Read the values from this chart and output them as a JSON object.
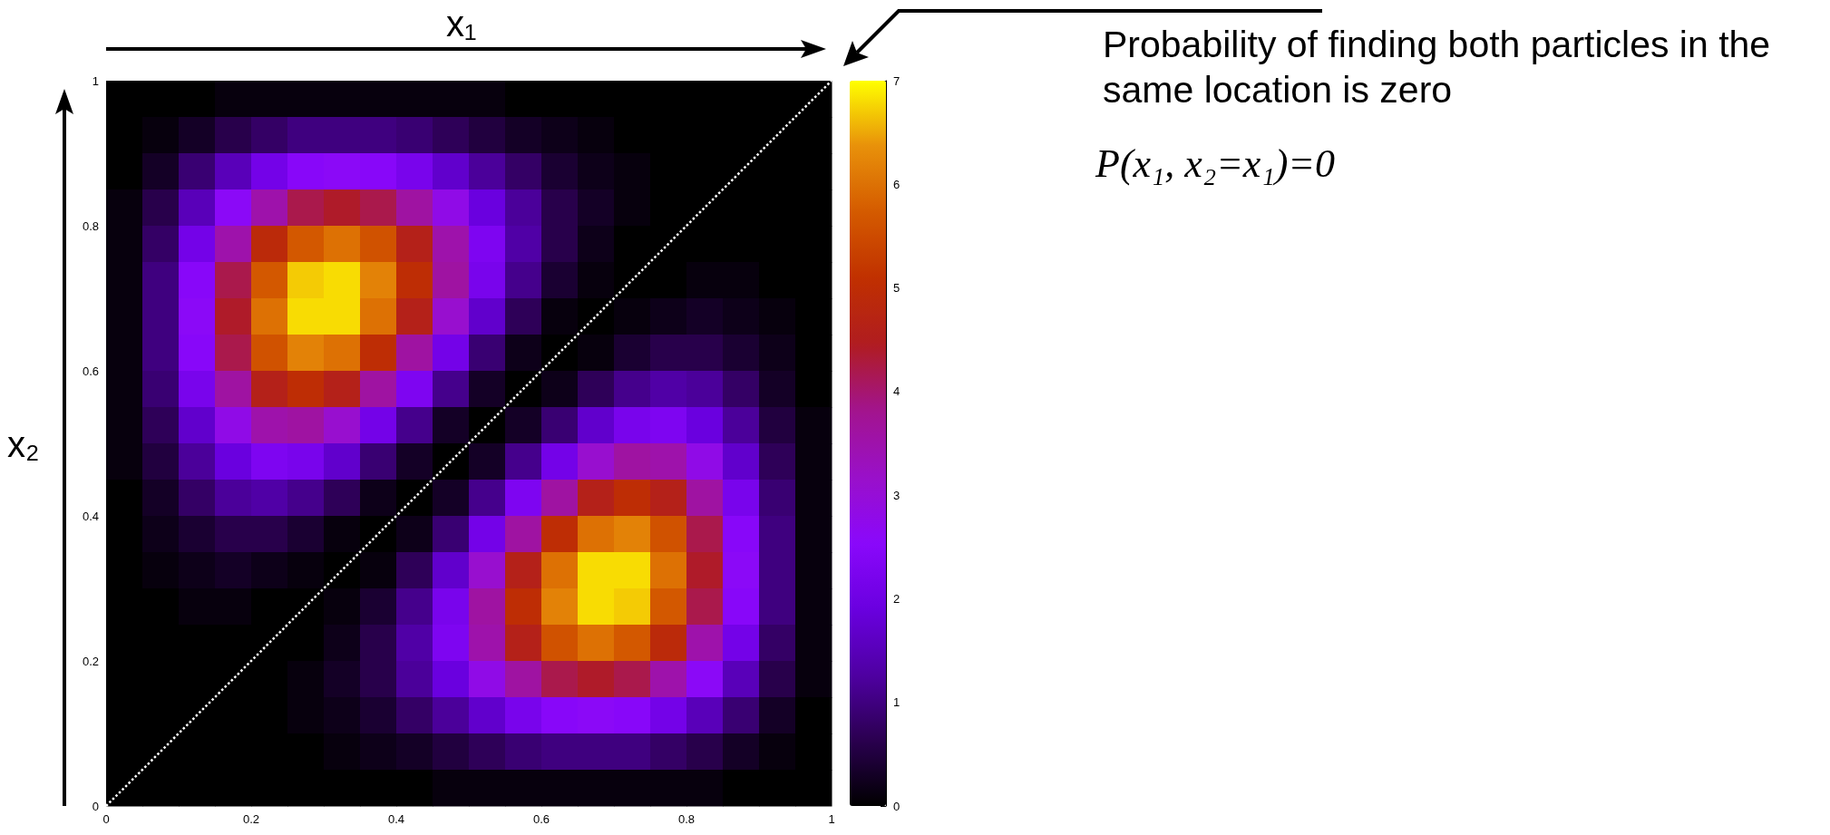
{
  "chart_data": {
    "type": "heatmap",
    "xlabel": "x₁",
    "ylabel": "x₂",
    "annotations": [
      "Probability of finding both particles in the same location is zero",
      "P(x₁, x₂=x₁)=0"
    ],
    "xlim": [
      0,
      1
    ],
    "xticks": [
      0,
      0.2,
      0.4,
      0.6,
      0.8,
      1
    ],
    "ylim": [
      0,
      1
    ],
    "yticks": [
      0,
      0.2,
      0.4,
      0.6,
      0.8,
      1
    ],
    "clim": [
      0,
      7
    ],
    "cticks": [
      0,
      1,
      2,
      3,
      4,
      5,
      6,
      7
    ],
    "cells": [
      [
        0,
        0,
        0,
        0.1,
        0.1,
        0.1,
        0.1,
        0.1,
        0.1,
        0.1,
        0.1,
        0,
        0,
        0,
        0,
        0,
        0,
        0,
        0,
        0
      ],
      [
        0,
        0.1,
        0.3,
        0.6,
        0.8,
        1.0,
        1.0,
        1.0,
        0.9,
        0.7,
        0.5,
        0.3,
        0.2,
        0.1,
        0,
        0,
        0,
        0,
        0,
        0
      ],
      [
        0,
        0.3,
        0.9,
        1.5,
        2.1,
        2.5,
        2.6,
        2.5,
        2.2,
        1.7,
        1.2,
        0.8,
        0.4,
        0.2,
        0.1,
        0,
        0,
        0,
        0,
        0
      ],
      [
        0.1,
        0.6,
        1.5,
        2.6,
        3.5,
        4.2,
        4.4,
        4.2,
        3.6,
        2.8,
        1.9,
        1.2,
        0.6,
        0.3,
        0.1,
        0,
        0,
        0,
        0,
        0
      ],
      [
        0.1,
        0.8,
        2.1,
        3.5,
        4.9,
        5.7,
        6.0,
        5.6,
        4.6,
        3.5,
        2.3,
        1.3,
        0.6,
        0.2,
        0,
        0,
        0,
        0,
        0,
        0
      ],
      [
        0.1,
        1.0,
        2.5,
        4.2,
        5.7,
        6.7,
        6.8,
        6.2,
        5.0,
        3.6,
        2.2,
        1.1,
        0.4,
        0.1,
        0,
        0,
        0.1,
        0.1,
        0,
        0
      ],
      [
        0.1,
        1.0,
        2.6,
        4.4,
        6.0,
        6.8,
        6.8,
        6.0,
        4.6,
        3.1,
        1.7,
        0.7,
        0.1,
        0,
        0.1,
        0.2,
        0.3,
        0.2,
        0.1,
        0
      ],
      [
        0.1,
        1.0,
        2.5,
        4.2,
        5.6,
        6.2,
        6.0,
        5.0,
        3.6,
        2.1,
        0.9,
        0.2,
        0,
        0.1,
        0.4,
        0.6,
        0.6,
        0.4,
        0.2,
        0
      ],
      [
        0.1,
        0.9,
        2.2,
        3.6,
        4.6,
        5.0,
        4.6,
        3.6,
        2.3,
        1.1,
        0.3,
        0,
        0.2,
        0.7,
        1.1,
        1.3,
        1.2,
        0.8,
        0.3,
        0
      ],
      [
        0.1,
        0.7,
        1.7,
        2.8,
        3.5,
        3.6,
        3.1,
        2.1,
        1.1,
        0.3,
        0,
        0.3,
        0.9,
        1.7,
        2.2,
        2.3,
        1.9,
        1.2,
        0.5,
        0.1
      ],
      [
        0.1,
        0.5,
        1.2,
        1.9,
        2.3,
        2.2,
        1.7,
        0.9,
        0.3,
        0,
        0.3,
        1.1,
        2.1,
        3.1,
        3.6,
        3.5,
        2.8,
        1.7,
        0.7,
        0.1
      ],
      [
        0,
        0.3,
        0.8,
        1.2,
        1.3,
        1.1,
        0.7,
        0.2,
        0,
        0.3,
        1.1,
        2.3,
        3.6,
        4.6,
        5.0,
        4.6,
        3.6,
        2.2,
        0.9,
        0.1
      ],
      [
        0,
        0.2,
        0.4,
        0.6,
        0.6,
        0.4,
        0.1,
        0,
        0.2,
        0.9,
        2.1,
        3.6,
        5.0,
        6.0,
        6.2,
        5.6,
        4.2,
        2.5,
        1.0,
        0.1
      ],
      [
        0,
        0.1,
        0.2,
        0.3,
        0.2,
        0.1,
        0,
        0.1,
        0.7,
        1.7,
        3.1,
        4.6,
        6.0,
        6.8,
        6.8,
        6.0,
        4.4,
        2.6,
        1.0,
        0.1
      ],
      [
        0,
        0,
        0.1,
        0.1,
        0,
        0,
        0.1,
        0.4,
        1.1,
        2.2,
        3.6,
        5.0,
        6.2,
        6.8,
        6.7,
        5.7,
        4.2,
        2.5,
        1.0,
        0.1
      ],
      [
        0,
        0,
        0,
        0,
        0,
        0,
        0.2,
        0.6,
        1.3,
        2.3,
        3.5,
        4.6,
        5.6,
        6.0,
        5.7,
        4.9,
        3.5,
        2.1,
        0.8,
        0.1
      ],
      [
        0,
        0,
        0,
        0,
        0,
        0.1,
        0.3,
        0.6,
        1.2,
        1.9,
        2.8,
        3.6,
        4.2,
        4.4,
        4.2,
        3.5,
        2.6,
        1.5,
        0.6,
        0.1
      ],
      [
        0,
        0,
        0,
        0,
        0,
        0.1,
        0.2,
        0.4,
        0.8,
        1.2,
        1.7,
        2.2,
        2.5,
        2.6,
        2.5,
        2.1,
        1.5,
        0.9,
        0.3,
        0
      ],
      [
        0,
        0,
        0,
        0,
        0,
        0,
        0.1,
        0.2,
        0.3,
        0.5,
        0.7,
        0.9,
        1.0,
        1.0,
        1.0,
        0.8,
        0.6,
        0.3,
        0.1,
        0
      ],
      [
        0,
        0,
        0,
        0,
        0,
        0,
        0,
        0,
        0,
        0.1,
        0.1,
        0.1,
        0.1,
        0.1,
        0.1,
        0.1,
        0.1,
        0,
        0,
        0
      ]
    ],
    "series": [
      {
        "type": "line",
        "x": [
          0,
          1
        ],
        "values": [
          0,
          1
        ],
        "color": "#ffffff",
        "line_style": "dotted"
      }
    ]
  }
}
